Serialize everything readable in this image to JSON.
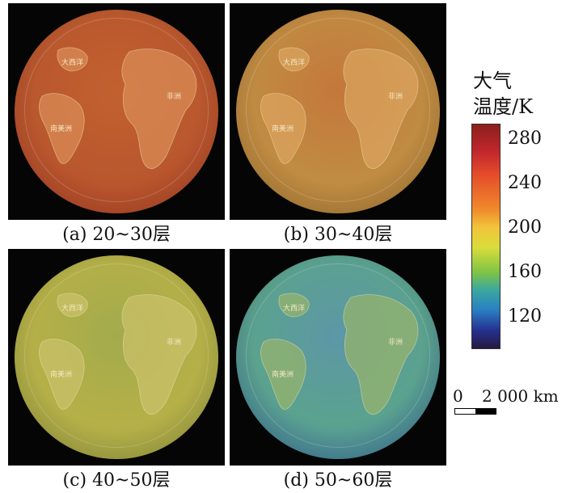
{
  "panels": [
    {
      "caption": "(a) 20~30层",
      "gradient": [
        "#c2612f",
        "#b9572e",
        "#c44a2a"
      ],
      "land": "#d98b56"
    },
    {
      "caption": "(b) 30~40层",
      "gradient": [
        "#c5773b",
        "#c08b42",
        "#bc8a3e"
      ],
      "land": "#d9a35d"
    },
    {
      "caption": "(c) 40~50层",
      "gradient": [
        "#a2ab4c",
        "#b5b048",
        "#a9ad4a"
      ],
      "land": "#c9c068"
    },
    {
      "caption": "(d) 50~60层",
      "gradient": [
        "#5c97a7",
        "#5ba28e",
        "#3f79b5"
      ],
      "land": "#94b36c"
    }
  ],
  "map_labels": {
    "greenland": "大西洋",
    "africa": "非洲",
    "south_america": "南美洲"
  },
  "legend": {
    "title_line1": "大气",
    "title_line2": "温度/K",
    "ticks": [
      "280",
      "240",
      "200",
      "160",
      "120"
    ],
    "colors": [
      "#8b1f1c",
      "#c1272d",
      "#e44a2a",
      "#f08a2b",
      "#f2c43a",
      "#d9dc3b",
      "#7fc444",
      "#3aa8a0",
      "#2a7ec2",
      "#26308f",
      "#241a3e"
    ]
  },
  "scale_bar": {
    "start": "0",
    "end": "2 000 km"
  }
}
